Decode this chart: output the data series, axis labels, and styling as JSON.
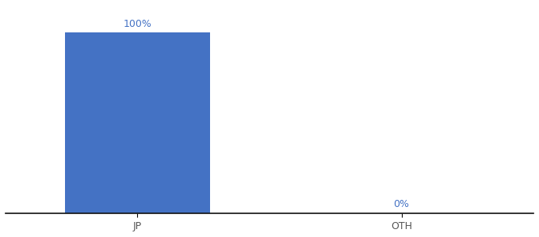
{
  "categories": [
    "JP",
    "OTH"
  ],
  "values": [
    100,
    0
  ],
  "bar_color": "#4472c4",
  "label_color": "#4472c4",
  "bar_labels": [
    "100%",
    "0%"
  ],
  "tick_fontsize": 9,
  "label_fontsize": 9,
  "ylim": [
    0,
    115
  ],
  "xlim": [
    -0.5,
    1.5
  ],
  "bar_width": 0.55,
  "background_color": "#ffffff",
  "axis_line_color": "#111111"
}
